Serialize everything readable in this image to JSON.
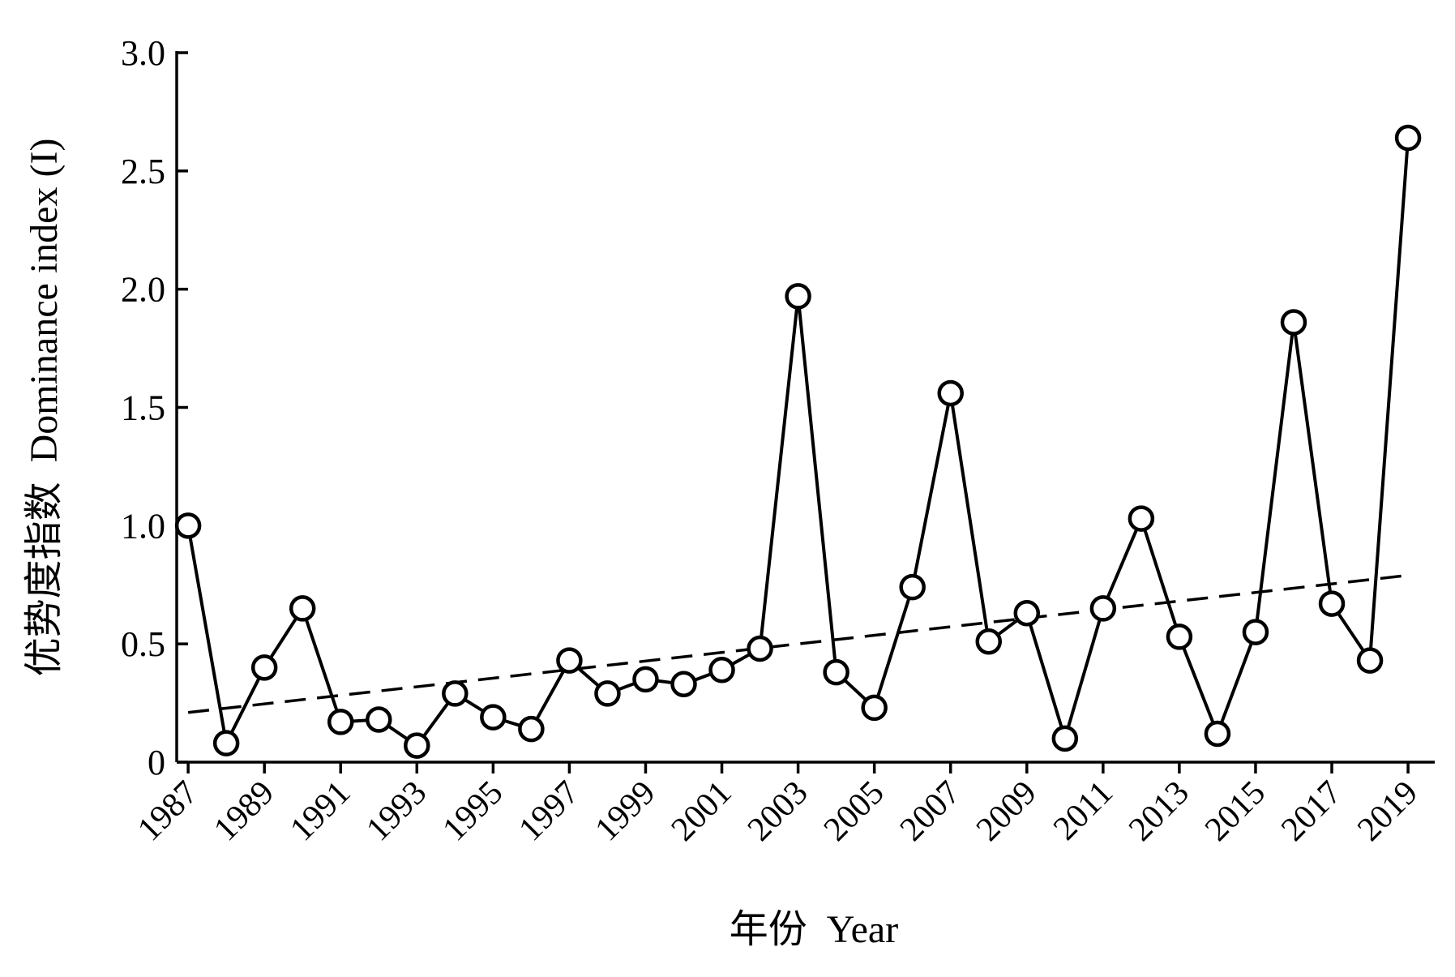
{
  "chart_data": {
    "type": "line",
    "xlabel": "年份  Year",
    "ylabel": "优势度指数  Dominance index (I)",
    "ylim": [
      0,
      3.0
    ],
    "xlim": [
      1986.7,
      2019.7
    ],
    "yticks": [
      0,
      0.5,
      1.0,
      1.5,
      2.0,
      2.5,
      3.0
    ],
    "ytick_labels": [
      "0",
      "0.5",
      "1.0",
      "1.5",
      "2.0",
      "2.5",
      "3.0"
    ],
    "xticks": [
      1987,
      1989,
      1991,
      1993,
      1995,
      1997,
      1999,
      2001,
      2003,
      2005,
      2007,
      2009,
      2011,
      2013,
      2015,
      2017,
      2019
    ],
    "xtick_labels": [
      "1987",
      "1989",
      "1991",
      "1993",
      "1995",
      "1997",
      "1999",
      "2001",
      "2003",
      "2005",
      "2007",
      "2009",
      "2011",
      "2013",
      "2015",
      "2017",
      "2019"
    ],
    "grid": false,
    "series": [
      {
        "style": "solid line with open circle markers",
        "x": [
          1987,
          1988,
          1989,
          1990,
          1991,
          1992,
          1993,
          1994,
          1995,
          1996,
          1997,
          1998,
          1999,
          2000,
          2001,
          2002,
          2003,
          2004,
          2005,
          2006,
          2007,
          2008,
          2009,
          2010,
          2011,
          2012,
          2013,
          2014,
          2015,
          2016,
          2017,
          2018,
          2019
        ],
        "y": [
          1.0,
          0.08,
          0.4,
          0.65,
          0.17,
          0.18,
          0.07,
          0.29,
          0.19,
          0.14,
          0.43,
          0.29,
          0.35,
          0.33,
          0.39,
          0.48,
          1.97,
          0.38,
          0.23,
          0.74,
          1.56,
          0.51,
          0.63,
          0.1,
          0.65,
          1.03,
          0.53,
          0.12,
          0.55,
          1.86,
          0.67,
          0.43,
          2.64
        ]
      }
    ],
    "trend_line": {
      "style": "dashed",
      "x": [
        1987,
        2019
      ],
      "y": [
        0.21,
        0.79
      ]
    }
  }
}
